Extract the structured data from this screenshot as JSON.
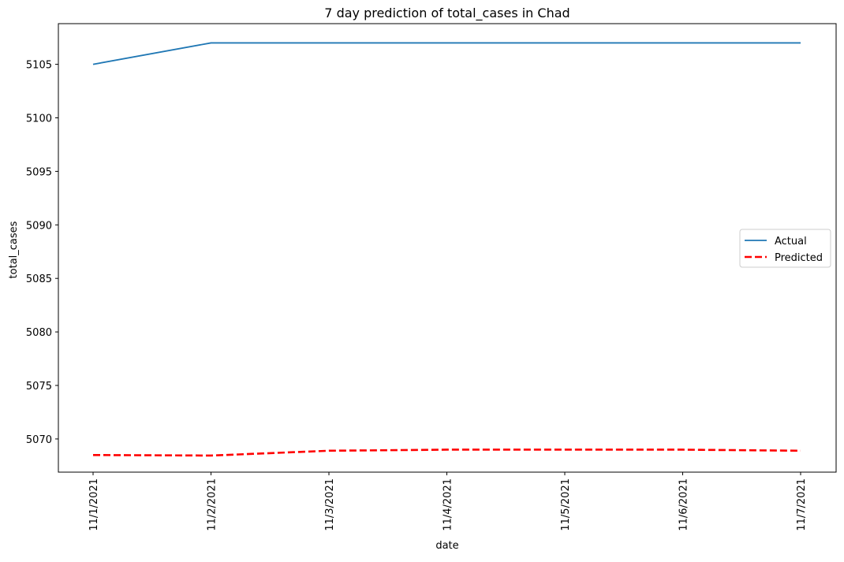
{
  "chart_data": {
    "type": "line",
    "title": "7 day prediction of total_cases in Chad",
    "xlabel": "date",
    "ylabel": "total_cases",
    "categories": [
      "11/1/2021",
      "11/2/2021",
      "11/3/2021",
      "11/4/2021",
      "11/5/2021",
      "11/6/2021",
      "11/7/2021"
    ],
    "yticks": [
      5070,
      5075,
      5080,
      5085,
      5090,
      5095,
      5100,
      5105
    ],
    "ylim": [
      5066.9,
      5108.8
    ],
    "grid": false,
    "legend_position": "center-right",
    "series": [
      {
        "name": "Actual",
        "values": [
          5105,
          5107,
          5107,
          5107,
          5107,
          5107,
          5107
        ],
        "color": "#1f77b4",
        "style": "solid"
      },
      {
        "name": "Predicted",
        "values": [
          5068.5,
          5068.45,
          5068.9,
          5069.0,
          5069.0,
          5069.0,
          5068.9
        ],
        "color": "#ff0000",
        "style": "dashed"
      }
    ]
  }
}
